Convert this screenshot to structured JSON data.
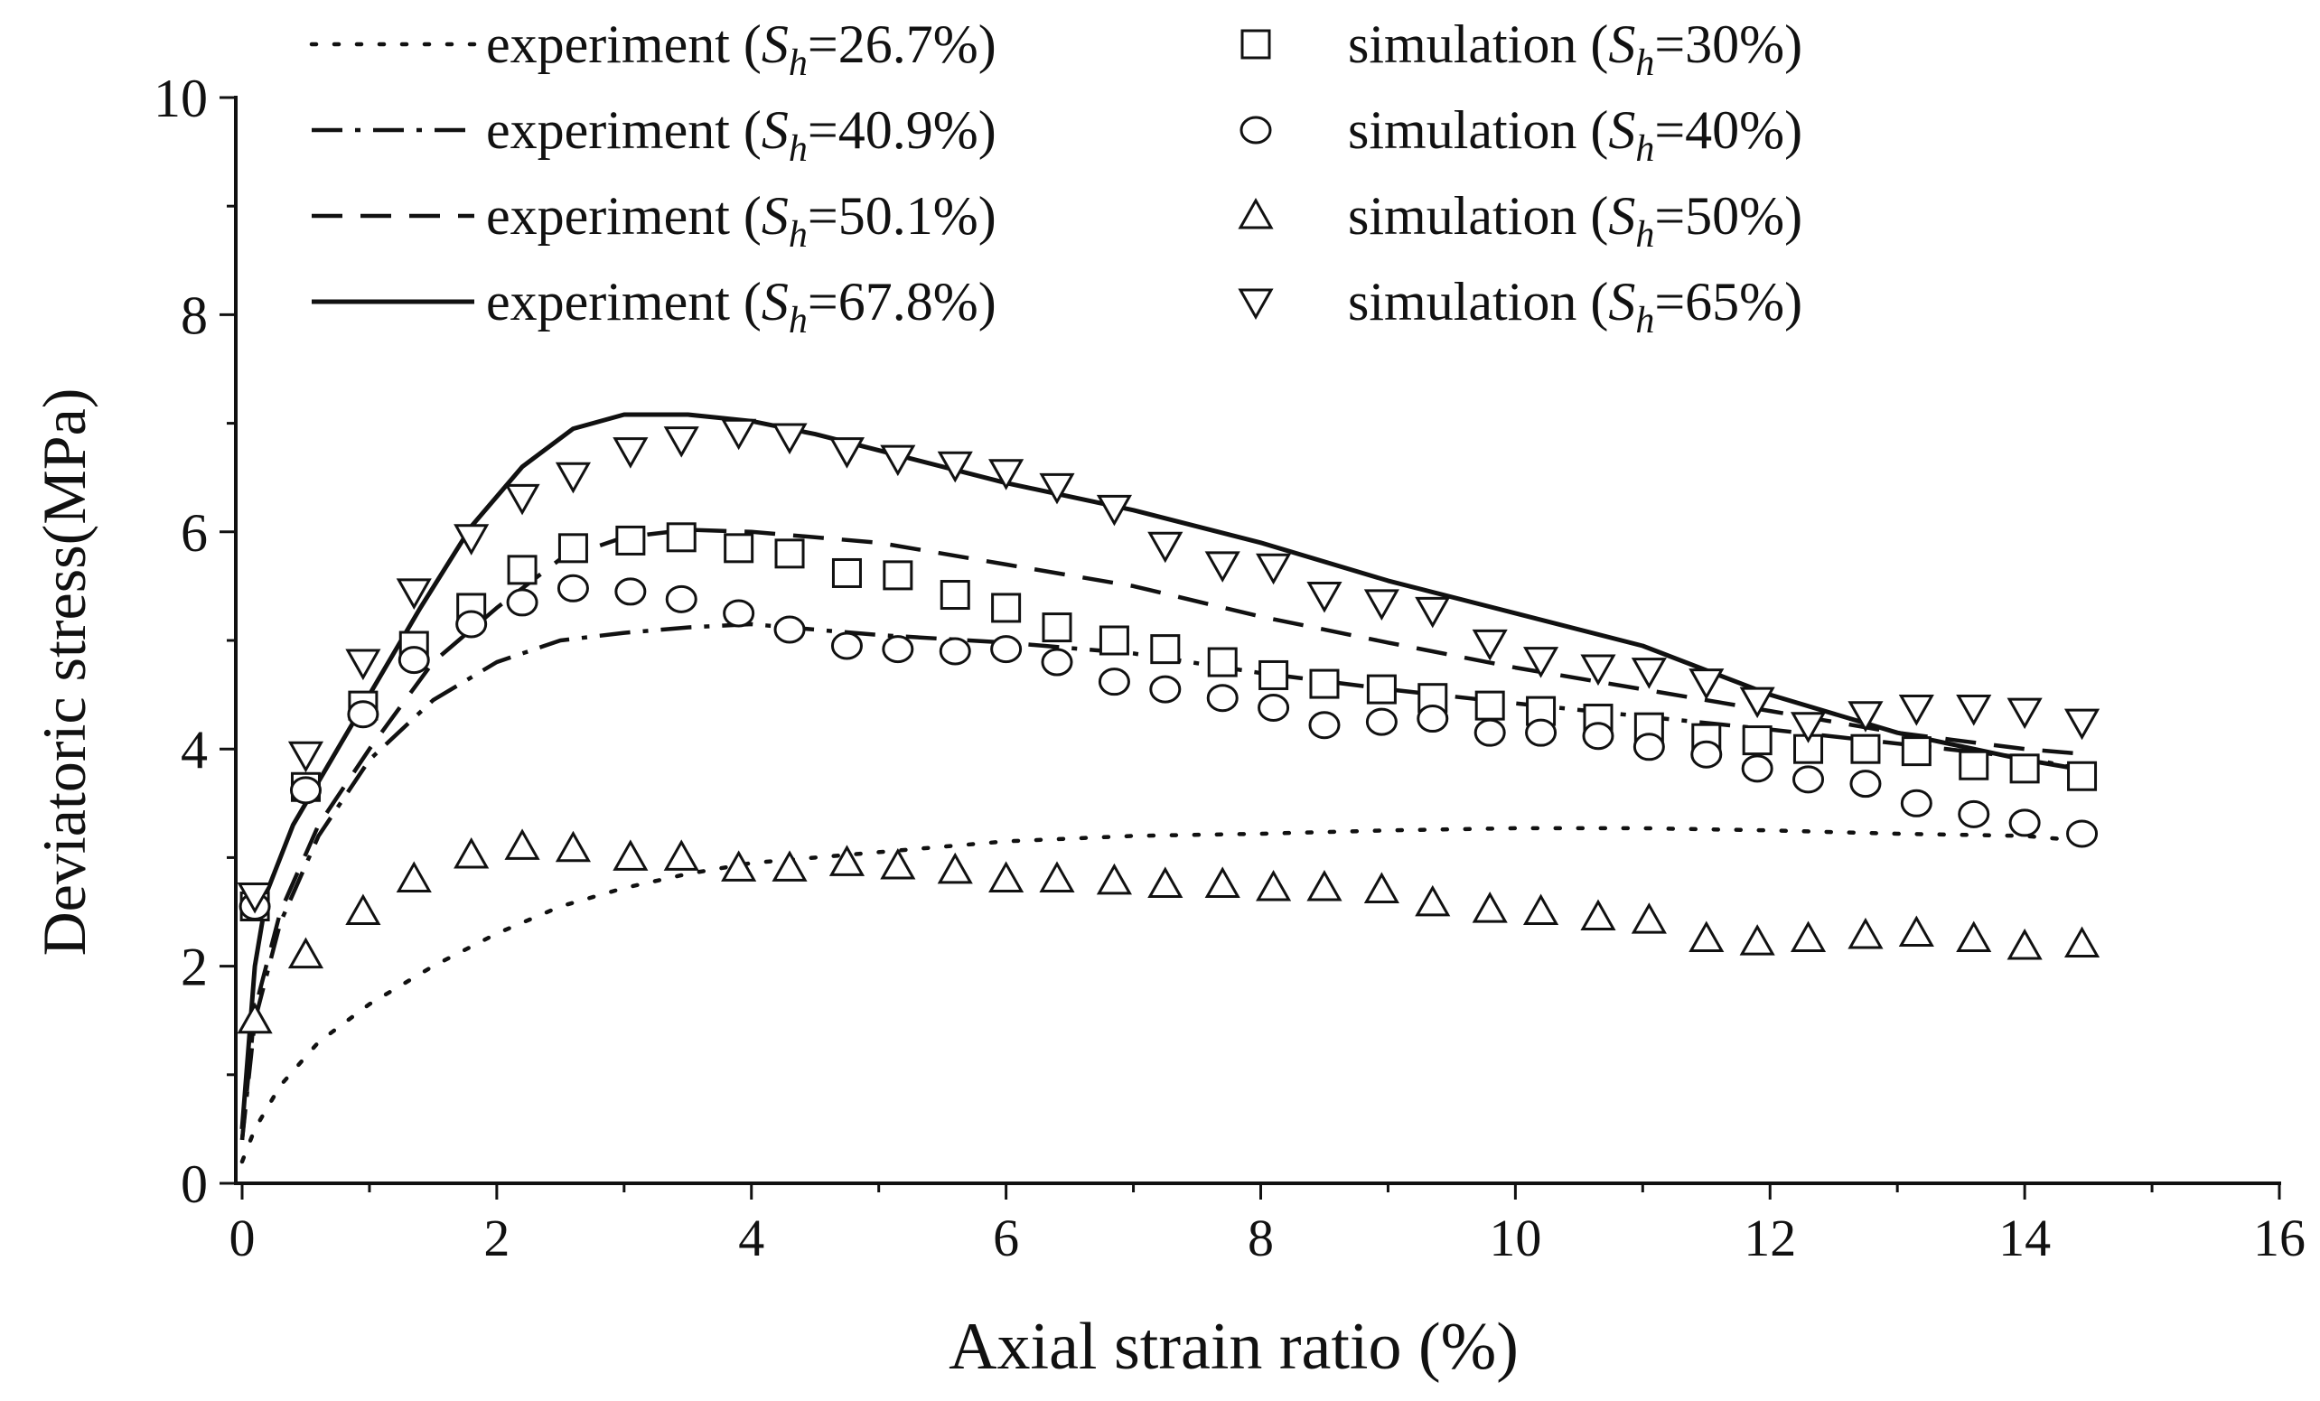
{
  "chart_data": {
    "type": "line",
    "xlabel": "Axial strain ratio (%)",
    "ylabel": "Deviatoric stress(MPa)",
    "xlim": [
      0,
      16
    ],
    "ylim": [
      0,
      10
    ],
    "x_ticks": [
      "0",
      "2",
      "4",
      "6",
      "8",
      "10",
      "12",
      "14",
      "16"
    ],
    "y_ticks": [
      "0",
      "2",
      "4",
      "6",
      "8",
      "10"
    ],
    "legend_position": "top",
    "colors": {
      "ink": "#111111",
      "background": "#ffffff"
    },
    "series": [
      {
        "name": "experiment (Sh=26.7%)",
        "prefix": "experiment (",
        "sub": "S",
        "subsub": "h",
        "suffix": "=26.7%)",
        "kind": "line",
        "style": "dotted",
        "x": [
          0,
          0.1,
          0.3,
          0.6,
          1.0,
          1.5,
          2.0,
          2.5,
          3.0,
          3.5,
          4.0,
          5.0,
          6.0,
          7.0,
          8.0,
          9.0,
          10.0,
          11.0,
          12.0,
          13.0,
          14.0,
          14.5
        ],
        "y": [
          0.2,
          0.5,
          0.9,
          1.3,
          1.65,
          2.0,
          2.3,
          2.55,
          2.72,
          2.85,
          2.95,
          3.05,
          3.15,
          3.2,
          3.22,
          3.25,
          3.27,
          3.27,
          3.25,
          3.22,
          3.2,
          3.15
        ]
      },
      {
        "name": "experiment (Sh=40.9%)",
        "prefix": "experiment (",
        "sub": "S",
        "subsub": "h",
        "suffix": "=40.9%)",
        "kind": "line",
        "style": "dashdot",
        "x": [
          0,
          0.1,
          0.3,
          0.6,
          1.0,
          1.5,
          2.0,
          2.5,
          3.0,
          3.5,
          4.0,
          4.5,
          5.0,
          6.0,
          7.0,
          8.0,
          9.0,
          10.0,
          11.0,
          12.0,
          13.0,
          14.0,
          14.5
        ],
        "y": [
          0.4,
          1.5,
          2.4,
          3.2,
          3.9,
          4.45,
          4.8,
          5.0,
          5.07,
          5.12,
          5.15,
          5.1,
          5.05,
          4.98,
          4.88,
          4.7,
          4.55,
          4.42,
          4.3,
          4.18,
          4.05,
          3.92,
          3.8
        ]
      },
      {
        "name": "experiment (Sh=50.1%)",
        "prefix": "experiment (",
        "sub": "S",
        "subsub": "h",
        "suffix": "=50.1%)",
        "kind": "line",
        "style": "dashed",
        "x": [
          0,
          0.1,
          0.3,
          0.6,
          1.0,
          1.5,
          2.0,
          2.5,
          3.0,
          3.5,
          4.0,
          5.0,
          6.0,
          7.0,
          8.0,
          9.0,
          10.0,
          11.0,
          12.0,
          13.0,
          14.0,
          14.5
        ],
        "y": [
          0.4,
          1.6,
          2.5,
          3.3,
          4.0,
          4.8,
          5.3,
          5.75,
          5.95,
          6.02,
          6.0,
          5.9,
          5.7,
          5.5,
          5.22,
          4.98,
          4.75,
          4.55,
          4.35,
          4.15,
          4.0,
          3.95
        ]
      },
      {
        "name": "experiment (Sh=67.8%)",
        "prefix": "experiment (",
        "sub": "S",
        "subsub": "h",
        "suffix": "=67.8%)",
        "kind": "line",
        "style": "solid",
        "x": [
          0,
          0.1,
          0.2,
          0.4,
          0.7,
          1.0,
          1.4,
          1.8,
          2.2,
          2.6,
          3.0,
          3.5,
          4.0,
          4.5,
          5.0,
          6.0,
          7.0,
          8.0,
          9.0,
          10.0,
          11.0,
          12.0,
          13.0,
          14.0,
          14.5
        ],
        "y": [
          0.5,
          2.0,
          2.7,
          3.3,
          3.9,
          4.5,
          5.3,
          6.05,
          6.6,
          6.95,
          7.08,
          7.08,
          7.02,
          6.9,
          6.75,
          6.45,
          6.2,
          5.9,
          5.55,
          5.25,
          4.95,
          4.5,
          4.15,
          3.9,
          3.8
        ]
      },
      {
        "name": "simulation (Sh=30%)",
        "prefix": "simulation (",
        "sub": "S",
        "subsub": "h",
        "suffix": "=30%)",
        "kind": "marker",
        "marker": "square",
        "x": [
          0.1,
          0.5,
          0.95,
          1.35,
          1.8,
          2.2,
          2.6,
          3.05,
          3.45,
          3.9,
          4.3,
          4.75,
          5.15,
          5.6,
          6.0,
          6.4,
          6.85,
          7.25,
          7.7,
          8.1,
          8.5,
          8.95,
          9.35,
          9.8,
          10.2,
          10.65,
          11.05,
          11.5,
          11.9,
          12.3,
          12.75,
          13.15,
          13.6,
          14.0,
          14.45
        ],
        "y": [
          2.55,
          3.65,
          4.4,
          4.95,
          5.3,
          5.65,
          5.85,
          5.92,
          5.95,
          5.85,
          5.8,
          5.62,
          5.6,
          5.42,
          5.3,
          5.12,
          5.0,
          4.92,
          4.8,
          4.68,
          4.6,
          4.55,
          4.47,
          4.4,
          4.35,
          4.28,
          4.2,
          4.1,
          4.08,
          4.0,
          4.0,
          3.98,
          3.85,
          3.82,
          3.75
        ]
      },
      {
        "name": "simulation (Sh=40%)",
        "prefix": "simulation (",
        "sub": "S",
        "subsub": "h",
        "suffix": "=40%)",
        "kind": "marker",
        "marker": "circle",
        "x": [
          0.1,
          0.5,
          0.95,
          1.35,
          1.8,
          2.2,
          2.6,
          3.05,
          3.45,
          3.9,
          4.3,
          4.75,
          5.15,
          5.6,
          6.0,
          6.4,
          6.85,
          7.25,
          7.7,
          8.1,
          8.5,
          8.95,
          9.35,
          9.8,
          10.2,
          10.65,
          11.05,
          11.5,
          11.9,
          12.3,
          12.75,
          13.15,
          13.6,
          14.0,
          14.45
        ],
        "y": [
          2.55,
          3.62,
          4.32,
          4.82,
          5.15,
          5.35,
          5.48,
          5.45,
          5.38,
          5.25,
          5.1,
          4.95,
          4.92,
          4.9,
          4.92,
          4.8,
          4.62,
          4.55,
          4.47,
          4.38,
          4.22,
          4.25,
          4.28,
          4.15,
          4.15,
          4.12,
          4.02,
          3.95,
          3.82,
          3.72,
          3.68,
          3.5,
          3.4,
          3.32,
          3.22
        ]
      },
      {
        "name": "simulation (Sh=50%)",
        "prefix": "simulation (",
        "sub": "S",
        "subsub": "h",
        "suffix": "=50%)",
        "kind": "marker",
        "marker": "triangle-up",
        "x": [
          0.1,
          0.5,
          0.95,
          1.35,
          1.8,
          2.2,
          2.6,
          3.05,
          3.45,
          3.9,
          4.3,
          4.75,
          5.15,
          5.6,
          6.0,
          6.4,
          6.85,
          7.25,
          7.7,
          8.1,
          8.5,
          8.95,
          9.35,
          9.8,
          10.2,
          10.65,
          11.05,
          11.5,
          11.9,
          12.3,
          12.75,
          13.15,
          13.6,
          14.0,
          14.45
        ],
        "y": [
          1.5,
          2.1,
          2.5,
          2.8,
          3.02,
          3.1,
          3.08,
          3.0,
          3.0,
          2.9,
          2.9,
          2.95,
          2.92,
          2.88,
          2.8,
          2.8,
          2.78,
          2.75,
          2.75,
          2.72,
          2.72,
          2.7,
          2.58,
          2.52,
          2.5,
          2.45,
          2.42,
          2.25,
          2.22,
          2.25,
          2.28,
          2.3,
          2.25,
          2.18,
          2.2
        ]
      },
      {
        "name": "simulation (Sh=65%)",
        "prefix": "simulation (",
        "sub": "S",
        "subsub": "h",
        "suffix": "=65%)",
        "kind": "marker",
        "marker": "triangle-down",
        "x": [
          0.1,
          0.5,
          0.95,
          1.35,
          1.8,
          2.2,
          2.6,
          3.05,
          3.45,
          3.9,
          4.3,
          4.75,
          5.15,
          5.6,
          6.0,
          6.4,
          6.85,
          7.25,
          7.7,
          8.1,
          8.5,
          8.95,
          9.35,
          9.8,
          10.2,
          10.65,
          11.05,
          11.5,
          11.9,
          12.3,
          12.75,
          13.15,
          13.6,
          14.0,
          14.45
        ],
        "y": [
          2.65,
          3.95,
          4.8,
          5.45,
          5.95,
          6.32,
          6.52,
          6.75,
          6.85,
          6.92,
          6.88,
          6.75,
          6.68,
          6.62,
          6.55,
          6.42,
          6.22,
          5.88,
          5.7,
          5.68,
          5.42,
          5.35,
          5.28,
          4.98,
          4.82,
          4.75,
          4.72,
          4.62,
          4.45,
          4.22,
          4.32,
          4.38,
          4.38,
          4.35,
          4.25
        ]
      }
    ]
  }
}
